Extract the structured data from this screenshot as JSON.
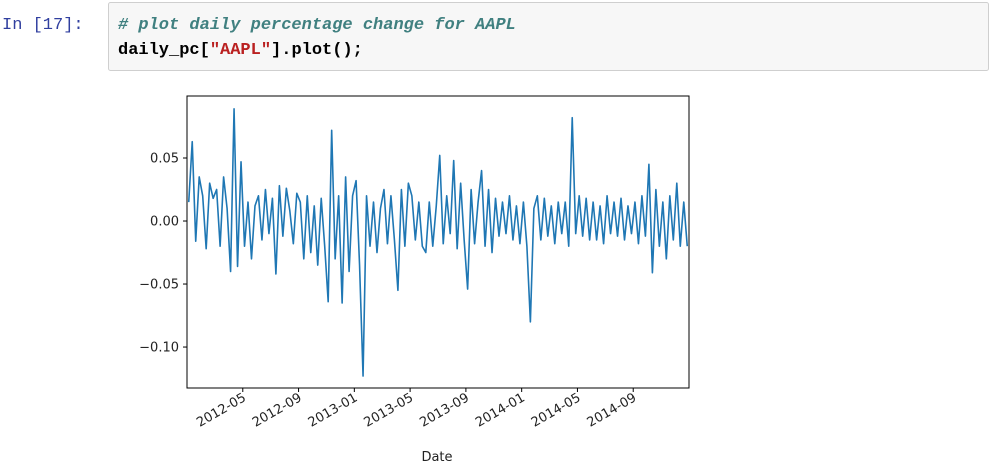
{
  "cell": {
    "prompt": "In [17]:",
    "code": [
      [
        "# plot daily percentage change for AAPL"
      ],
      [
        "daily_pc[",
        "\"AAPL\"",
        "].plot();"
      ]
    ]
  },
  "chart_data": {
    "type": "line",
    "xlabel": "Date",
    "color": "#1f77b4",
    "x": [
      "2012-01",
      "2012-01",
      "2012-01",
      "2012-01",
      "2012-02",
      "2012-02",
      "2012-02",
      "2012-02",
      "2012-03",
      "2012-03",
      "2012-03",
      "2012-03",
      "2012-04",
      "2012-04",
      "2012-04",
      "2012-04",
      "2012-05",
      "2012-05",
      "2012-05",
      "2012-05",
      "2012-06",
      "2012-06",
      "2012-06",
      "2012-06",
      "2012-07",
      "2012-07",
      "2012-07",
      "2012-07",
      "2012-08",
      "2012-08",
      "2012-08",
      "2012-08",
      "2012-09",
      "2012-09",
      "2012-09",
      "2012-09",
      "2012-10",
      "2012-10",
      "2012-10",
      "2012-10",
      "2012-11",
      "2012-11",
      "2012-11",
      "2012-11",
      "2012-12",
      "2012-12",
      "2012-12",
      "2012-12",
      "2013-01",
      "2013-01",
      "2013-01",
      "2013-01",
      "2013-02",
      "2013-02",
      "2013-02",
      "2013-02",
      "2013-03",
      "2013-03",
      "2013-03",
      "2013-03",
      "2013-04",
      "2013-04",
      "2013-04",
      "2013-04",
      "2013-05",
      "2013-05",
      "2013-05",
      "2013-05",
      "2013-06",
      "2013-06",
      "2013-06",
      "2013-06",
      "2013-07",
      "2013-07",
      "2013-07",
      "2013-07",
      "2013-08",
      "2013-08",
      "2013-08",
      "2013-08",
      "2013-09",
      "2013-09",
      "2013-09",
      "2013-09",
      "2013-10",
      "2013-10",
      "2013-10",
      "2013-10",
      "2013-11",
      "2013-11",
      "2013-11",
      "2013-11",
      "2013-12",
      "2013-12",
      "2013-12",
      "2013-12",
      "2014-01",
      "2014-01",
      "2014-01",
      "2014-01",
      "2014-02",
      "2014-02",
      "2014-02",
      "2014-02",
      "2014-03",
      "2014-03",
      "2014-03",
      "2014-03",
      "2014-04",
      "2014-04",
      "2014-04",
      "2014-04",
      "2014-05",
      "2014-05",
      "2014-05",
      "2014-05",
      "2014-06",
      "2014-06",
      "2014-06",
      "2014-06",
      "2014-07",
      "2014-07",
      "2014-07",
      "2014-07",
      "2014-08",
      "2014-08",
      "2014-08",
      "2014-08",
      "2014-09",
      "2014-09",
      "2014-09",
      "2014-09",
      "2014-10",
      "2014-10",
      "2014-10",
      "2014-10",
      "2014-11",
      "2014-11",
      "2014-11",
      "2014-11",
      "2014-12",
      "2014-12",
      "2014-12",
      "2014-12"
    ],
    "values": [
      0.015,
      0.063,
      -0.016,
      0.035,
      0.02,
      -0.022,
      0.03,
      0.018,
      0.025,
      -0.02,
      0.035,
      0.01,
      -0.04,
      0.089,
      -0.036,
      0.047,
      -0.02,
      0.015,
      -0.03,
      0.012,
      0.02,
      -0.015,
      0.025,
      -0.01,
      0.018,
      -0.042,
      0.028,
      -0.012,
      0.026,
      0.008,
      -0.018,
      0.022,
      0.015,
      -0.03,
      0.02,
      -0.025,
      0.012,
      -0.035,
      0.018,
      -0.02,
      -0.064,
      0.072,
      -0.03,
      0.02,
      -0.065,
      0.035,
      -0.04,
      0.02,
      0.032,
      -0.035,
      -0.123,
      0.02,
      -0.02,
      0.015,
      -0.025,
      0.01,
      0.025,
      -0.018,
      0.02,
      -0.015,
      -0.055,
      0.025,
      -0.02,
      0.03,
      0.02,
      -0.015,
      0.015,
      -0.02,
      -0.025,
      0.015,
      -0.02,
      0.012,
      0.052,
      -0.018,
      0.02,
      -0.01,
      0.048,
      -0.022,
      0.03,
      -0.015,
      -0.054,
      0.025,
      -0.018,
      0.015,
      0.04,
      -0.02,
      0.025,
      -0.025,
      0.018,
      -0.012,
      0.015,
      -0.01,
      0.02,
      -0.015,
      0.012,
      -0.018,
      0.015,
      -0.02,
      -0.08,
      0.01,
      0.02,
      -0.015,
      0.018,
      -0.012,
      0.012,
      -0.018,
      0.015,
      -0.01,
      0.015,
      -0.02,
      0.082,
      -0.01,
      0.02,
      -0.012,
      0.018,
      -0.015,
      0.015,
      -0.015,
      0.012,
      -0.018,
      0.02,
      -0.01,
      0.015,
      -0.012,
      0.018,
      -0.015,
      0.012,
      -0.01,
      0.015,
      -0.018,
      0.02,
      -0.012,
      0.045,
      -0.041,
      0.025,
      -0.02,
      0.015,
      -0.03,
      0.02,
      -0.015,
      0.03,
      -0.02,
      0.015,
      -0.02
    ],
    "xlim": [
      "2012-01",
      "2015-01"
    ],
    "xticks": [
      "2012-05",
      "2012-09",
      "2013-01",
      "2013-05",
      "2013-09",
      "2014-01",
      "2014-05",
      "2014-09"
    ],
    "ylim": [
      -0.1325,
      0.0992
    ],
    "yticks": [
      {
        "value": -0.1,
        "label": "−0.10"
      },
      {
        "value": -0.05,
        "label": "−0.05"
      },
      {
        "value": 0,
        "label": "0.00"
      },
      0.05
    ]
  }
}
